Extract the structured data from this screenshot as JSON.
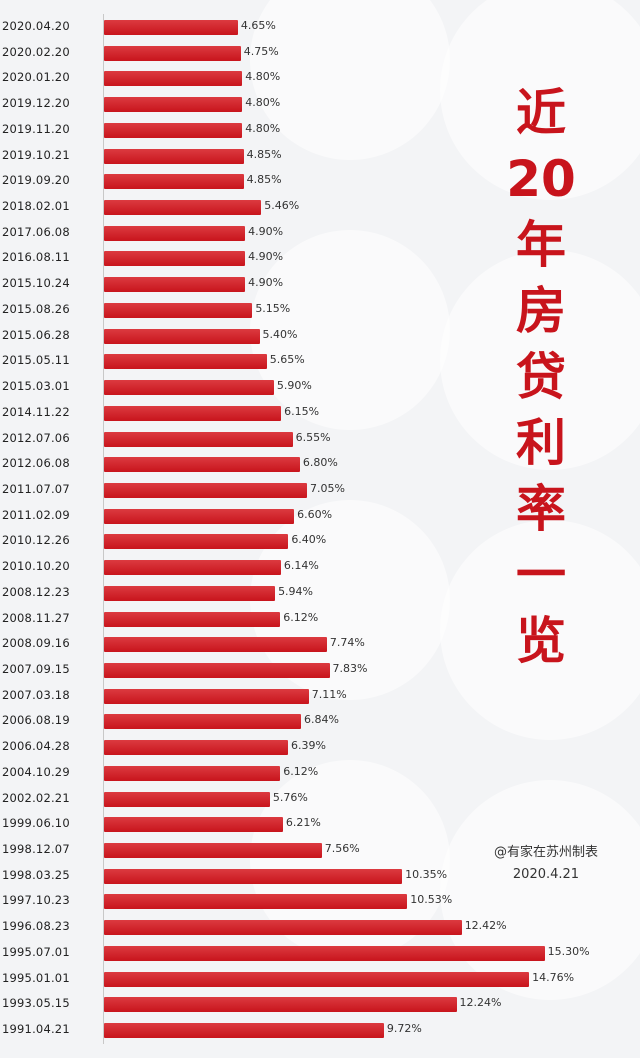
{
  "chart_data": {
    "type": "bar",
    "orientation": "horizontal",
    "title_chars": [
      "近",
      "20",
      "年",
      "房",
      "贷",
      "利",
      "率",
      "一",
      "览"
    ],
    "title": "近20年房贷利率一览",
    "categories": [
      "2020.04.20",
      "2020.02.20",
      "2020.01.20",
      "2019.12.20",
      "2019.11.20",
      "2019.10.21",
      "2019.09.20",
      "2018.02.01",
      "2017.06.08",
      "2016.08.11",
      "2015.10.24",
      "2015.08.26",
      "2015.06.28",
      "2015.05.11",
      "2015.03.01",
      "2014.11.22",
      "2012.07.06",
      "2012.06.08",
      "2011.07.07",
      "2011.02.09",
      "2010.12.26",
      "2010.10.20",
      "2008.12.23",
      "2008.11.27",
      "2008.09.16",
      "2007.09.15",
      "2007.03.18",
      "2006.08.19",
      "2006.04.28",
      "2004.10.29",
      "2002.02.21",
      "1999.06.10",
      "1998.12.07",
      "1998.03.25",
      "1997.10.23",
      "1996.08.23",
      "1995.07.01",
      "1995.01.01",
      "1993.05.15",
      "1991.04.21"
    ],
    "values": [
      4.65,
      4.75,
      4.8,
      4.8,
      4.8,
      4.85,
      4.85,
      5.46,
      4.9,
      4.9,
      4.9,
      5.15,
      5.4,
      5.65,
      5.9,
      6.15,
      6.55,
      6.8,
      7.05,
      6.6,
      6.4,
      6.14,
      5.94,
      6.12,
      7.74,
      7.83,
      7.11,
      6.84,
      6.39,
      6.12,
      5.76,
      6.21,
      7.56,
      10.35,
      10.53,
      12.42,
      15.3,
      14.76,
      12.24,
      9.72
    ],
    "labels": [
      "4.65%",
      "4.75%",
      "4.80%",
      "4.80%",
      "4.80%",
      "4.85%",
      "4.85%",
      "5.46%",
      "4.90%",
      "4.90%",
      "4.90%",
      "5.15%",
      "5.40%",
      "5.65%",
      "5.90%",
      "6.15%",
      "6.55%",
      "6.80%",
      "7.05%",
      "6.60%",
      "6.40%",
      "6.14%",
      "5.94%",
      "6.12%",
      "7.74%",
      "7.83%",
      "7.11%",
      "6.84%",
      "6.39%",
      "6.12%",
      "5.76%",
      "6.21%",
      "7.56%",
      "10.35%",
      "10.53%",
      "12.42%",
      "15.30%",
      "14.76%",
      "12.24%",
      "9.72%"
    ],
    "xlim": [
      0,
      15.7
    ],
    "colors": {
      "bar": "#c8141c",
      "title": "#c8141c"
    }
  },
  "credit": {
    "author": "@有家在苏州制表",
    "date": "2020.4.21"
  }
}
